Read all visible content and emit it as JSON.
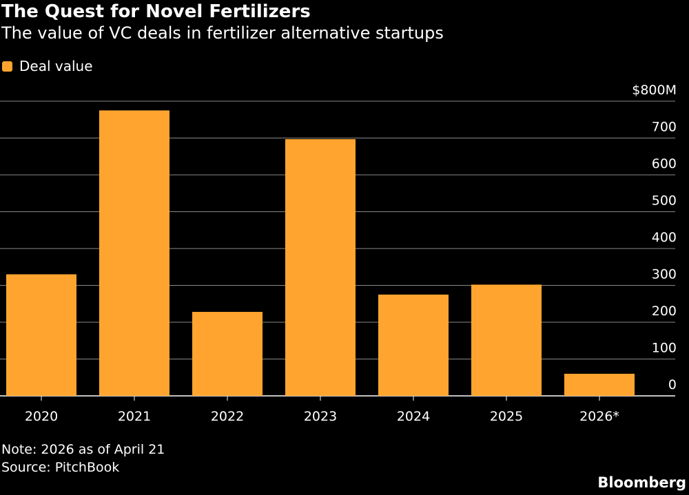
{
  "header": {
    "title": "The Quest for Novel Fertilizers",
    "subtitle": "The value of VC deals in fertilizer alternative startups"
  },
  "footer": {
    "note": "Note: 2026 as of April 21",
    "source": "Source: PitchBook",
    "brand": "Bloomberg"
  },
  "colors": {
    "bar": "#ffa52f",
    "grid": "#8a8a8a",
    "background": "#000000"
  },
  "chart_data": {
    "type": "bar",
    "categories": [
      "2020",
      "2021",
      "2022",
      "2023",
      "2024",
      "2025",
      "2026*"
    ],
    "series": [
      {
        "name": "Deal value",
        "values": [
          330,
          775,
          228,
          697,
          275,
          302,
          60
        ]
      }
    ],
    "title": "The Quest for Novel Fertilizers",
    "subtitle": "The value of VC deals in fertilizer alternative startups",
    "xlabel": "",
    "ylabel": "",
    "ylim": [
      0,
      800
    ],
    "yticks": [
      0,
      100,
      200,
      300,
      400,
      500,
      600,
      700,
      800
    ],
    "ytick_labels": [
      "0",
      "100",
      "200",
      "300",
      "400",
      "500",
      "600",
      "700",
      "$800M"
    ],
    "grid": true,
    "legend_position": "top-left",
    "y_axis_side": "right"
  }
}
